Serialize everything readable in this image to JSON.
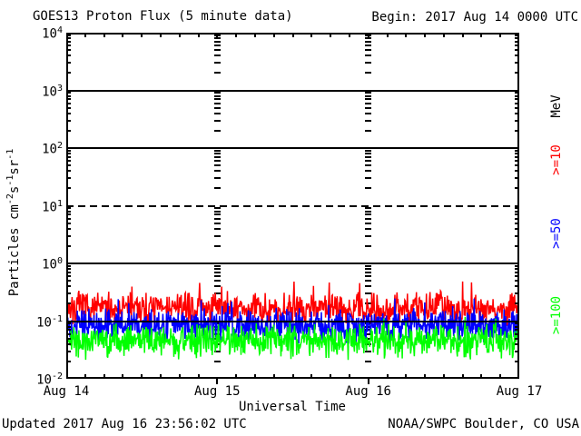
{
  "header": {
    "title": "GOES13 Proton Flux (5 minute data)",
    "begin_label": "Begin: 2017 Aug 14 0000 UTC"
  },
  "footer": {
    "updated": "Updated 2017 Aug 16 23:56:02 UTC",
    "source": "NOAA/SWPC Boulder, CO USA"
  },
  "chart_data": {
    "type": "line",
    "title": "GOES13 Proton Flux (5 minute data)",
    "begin": "2017 Aug 14 0000 UTC",
    "xlabel": "Universal Time",
    "ylabel": "Particles cm^-2 s^-1 sr^-1",
    "ylabel_segments": [
      {
        "t": "Particles cm"
      },
      {
        "s": "-2"
      },
      {
        "t": "s"
      },
      {
        "s": "-1"
      },
      {
        "t": "sr"
      },
      {
        "s": "-1"
      }
    ],
    "yscale": "log",
    "ylim": [
      0.01,
      10000
    ],
    "y_ticks": [
      {
        "base": "10",
        "exp": "4",
        "value": 10000
      },
      {
        "base": "10",
        "exp": "3",
        "value": 1000
      },
      {
        "base": "10",
        "exp": "2",
        "value": 100
      },
      {
        "base": "10",
        "exp": "1",
        "value": 10
      },
      {
        "base": "10",
        "exp": "0",
        "value": 1
      },
      {
        "base": "10",
        "exp": "-1",
        "value": 0.1
      },
      {
        "base": "10",
        "exp": "-2",
        "value": 0.01
      }
    ],
    "h_gridlines": [
      {
        "value": 1000,
        "style": "solid"
      },
      {
        "value": 100,
        "style": "solid"
      },
      {
        "value": 10,
        "style": "dashed"
      },
      {
        "value": 1,
        "style": "solid"
      },
      {
        "value": 0.1,
        "style": "solid"
      }
    ],
    "x_hours_total": 72,
    "x_minor_tick_hours": 3,
    "x_day_tick_hours": [
      24,
      48
    ],
    "x_ticks": [
      {
        "label": "Aug 14",
        "hour": 0
      },
      {
        "label": "Aug 15",
        "hour": 24
      },
      {
        "label": "Aug 16",
        "hour": 48
      },
      {
        "label": "Aug 17",
        "hour": 72
      }
    ],
    "right_axis_title": "MeV",
    "cadence_minutes": 5,
    "series": [
      {
        "name": ">=10 MeV",
        "label": ">=10",
        "color": "#ff0000",
        "mean_flux": 0.16,
        "typical_range": [
          0.09,
          0.32
        ],
        "peak_flux": 0.5
      },
      {
        "name": ">=50 MeV",
        "label": ">=50",
        "color": "#0000ff",
        "mean_flux": 0.085,
        "typical_range": [
          0.045,
          0.16
        ],
        "peak_flux": 0.25
      },
      {
        "name": ">=100 MeV",
        "label": ">=100",
        "color": "#00ff00",
        "mean_flux": 0.045,
        "typical_range": [
          0.024,
          0.088
        ],
        "peak_flux": 0.12
      }
    ]
  }
}
